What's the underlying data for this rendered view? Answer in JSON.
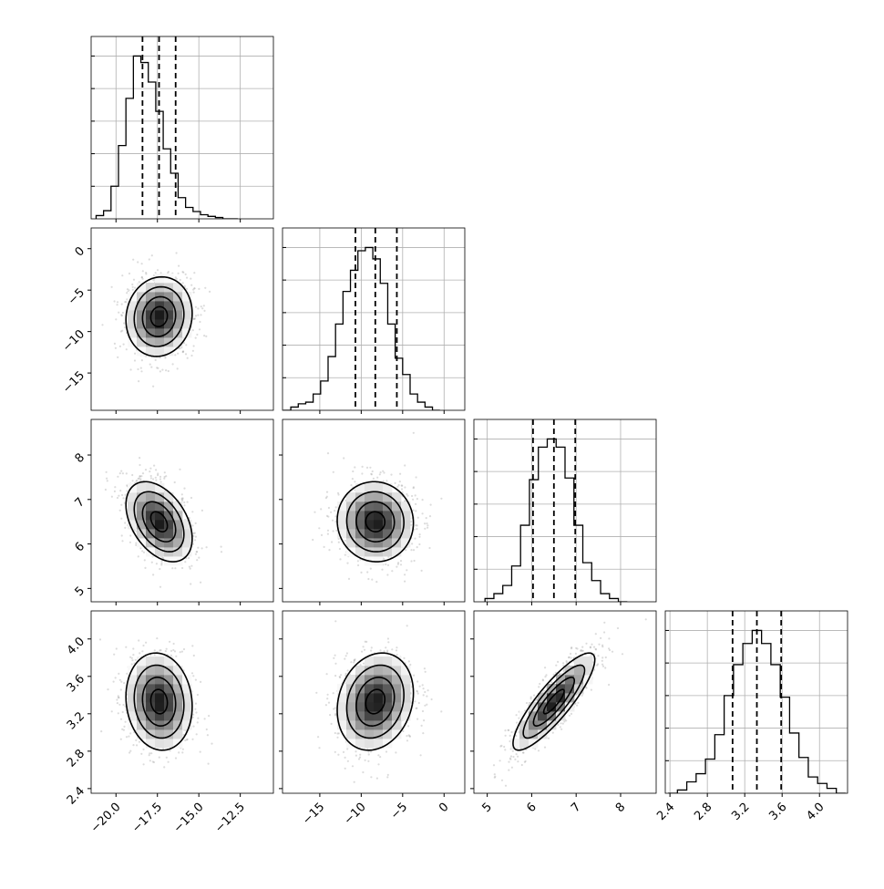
{
  "chart_data": {
    "type": "corner",
    "figure": {
      "title": "",
      "grid": true
    },
    "parameters": [
      {
        "id": "p0",
        "axis_range": [
          -21.5,
          -10.5
        ],
        "ticks": [
          -20.0,
          -17.5,
          -15.0,
          -12.5
        ],
        "tick_labels": [
          "−20.0",
          "−17.5",
          "−15.0",
          "−12.5"
        ],
        "quantiles": [
          -18.4,
          -17.4,
          -16.4
        ],
        "histogram": {
          "bin_edges": [
            -21.2,
            -20.75,
            -20.3,
            -19.85,
            -19.4,
            -18.95,
            -18.5,
            -18.05,
            -17.6,
            -17.15,
            -16.7,
            -16.25,
            -15.8,
            -15.35,
            -14.9,
            -14.45,
            -14.0,
            -13.55,
            -13.1,
            -12.65
          ],
          "counts": [
            0.02,
            0.05,
            0.2,
            0.45,
            0.74,
            1.0,
            0.96,
            0.84,
            0.66,
            0.43,
            0.28,
            0.13,
            0.07,
            0.045,
            0.025,
            0.015,
            0.008,
            0.0,
            0.0
          ],
          "y_max": 1.12
        }
      },
      {
        "id": "p1",
        "axis_range": [
          -19.5,
          2.5
        ],
        "ticks": [
          -15,
          -10,
          -5,
          0
        ],
        "tick_labels": [
          "−15",
          "−10",
          "−5",
          "0"
        ],
        "quantiles": [
          -10.7,
          -8.3,
          -5.7
        ],
        "histogram": {
          "bin_edges": [
            -19.4,
            -18.5,
            -17.6,
            -16.7,
            -15.8,
            -14.9,
            -14.0,
            -13.1,
            -12.2,
            -11.3,
            -10.4,
            -9.5,
            -8.6,
            -7.7,
            -6.8,
            -5.9,
            -5.0,
            -4.1,
            -3.2,
            -2.3,
            -1.4,
            -0.5
          ],
          "counts": [
            0.0,
            0.02,
            0.04,
            0.05,
            0.1,
            0.18,
            0.33,
            0.53,
            0.73,
            0.86,
            0.98,
            1.0,
            0.93,
            0.78,
            0.53,
            0.32,
            0.22,
            0.1,
            0.05,
            0.02,
            0.0
          ],
          "y_max": 1.12
        }
      },
      {
        "id": "p2",
        "axis_range": [
          4.7,
          8.8
        ],
        "ticks": [
          5,
          6,
          7,
          8
        ],
        "tick_labels": [
          "5",
          "6",
          "7",
          "8"
        ],
        "quantiles": [
          6.03,
          6.5,
          6.98
        ],
        "histogram": {
          "bin_edges": [
            4.95,
            5.15,
            5.35,
            5.55,
            5.75,
            5.95,
            6.15,
            6.35,
            6.55,
            6.75,
            6.95,
            7.15,
            7.35,
            7.55,
            7.75,
            7.95,
            8.15
          ],
          "counts": [
            0.02,
            0.05,
            0.1,
            0.22,
            0.47,
            0.75,
            0.95,
            1.0,
            0.95,
            0.76,
            0.47,
            0.24,
            0.13,
            0.05,
            0.02,
            0.0
          ],
          "y_max": 1.12
        }
      },
      {
        "id": "p3",
        "axis_range": [
          2.35,
          4.3
        ],
        "ticks": [
          2.4,
          2.8,
          3.2,
          3.6,
          4.0
        ],
        "tick_labels": [
          "2.4",
          "2.8",
          "3.2",
          "3.6",
          "4.0"
        ],
        "quantiles": [
          3.07,
          3.33,
          3.59
        ],
        "histogram": {
          "bin_edges": [
            2.38,
            2.48,
            2.58,
            2.68,
            2.78,
            2.88,
            2.98,
            3.08,
            3.18,
            3.28,
            3.38,
            3.48,
            3.58,
            3.68,
            3.78,
            3.88,
            3.98,
            4.08,
            4.18,
            4.28
          ],
          "counts": [
            0.0,
            0.02,
            0.07,
            0.12,
            0.21,
            0.36,
            0.6,
            0.79,
            0.92,
            1.0,
            0.92,
            0.79,
            0.59,
            0.37,
            0.22,
            0.1,
            0.06,
            0.03,
            0.0
          ],
          "y_max": 1.12
        }
      }
    ],
    "pairs": [
      {
        "x": "p0",
        "y": "p1",
        "center": [
          -17.4,
          -8.2
        ],
        "sigma": [
          1.0,
          2.4
        ],
        "corr": 0.08,
        "n_points": 900
      },
      {
        "x": "p0",
        "y": "p2",
        "center": [
          -17.4,
          6.5
        ],
        "sigma": [
          1.0,
          0.45
        ],
        "corr": -0.42,
        "n_points": 900
      },
      {
        "x": "p1",
        "y": "p2",
        "center": [
          -8.3,
          6.5
        ],
        "sigma": [
          2.3,
          0.45
        ],
        "corr": -0.03,
        "n_points": 900
      },
      {
        "x": "p0",
        "y": "p3",
        "center": [
          -17.4,
          3.33
        ],
        "sigma": [
          1.0,
          0.26
        ],
        "corr": -0.1,
        "n_points": 900
      },
      {
        "x": "p1",
        "y": "p3",
        "center": [
          -8.3,
          3.33
        ],
        "sigma": [
          2.3,
          0.26
        ],
        "corr": 0.18,
        "n_points": 900
      },
      {
        "x": "p2",
        "y": "p3",
        "center": [
          6.5,
          3.33
        ],
        "sigma": [
          0.46,
          0.26
        ],
        "corr": 0.86,
        "n_points": 900
      }
    ],
    "contour_levels_sigma": [
      0.5,
      1.0,
      1.5,
      2.0
    ]
  }
}
